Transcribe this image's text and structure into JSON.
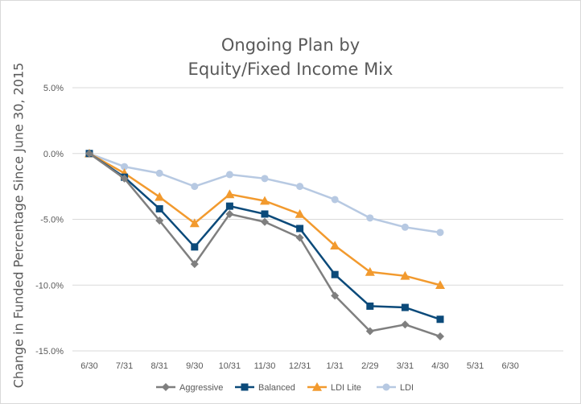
{
  "chart_data": {
    "type": "line",
    "title": [
      "Ongoing Plan by",
      "Equity/Fixed Income Mix"
    ],
    "xlabel": "",
    "ylabel": "Change in Funded Percentage Since June 30, 2015",
    "categories": [
      "6/30",
      "7/31",
      "8/31",
      "9/30",
      "10/31",
      "11/30",
      "12/31",
      "1/31",
      "2/29",
      "3/31",
      "4/30",
      "5/31",
      "6/30"
    ],
    "ylim": [
      -15.0,
      5.0
    ],
    "yticks": [
      5.0,
      0.0,
      -5.0,
      -10.0,
      -15.0
    ],
    "ytick_labels": [
      "5.0%",
      "0.0%",
      "-5.0%",
      "-10.0%",
      "-15.0%"
    ],
    "grid": "horizontal",
    "legend_position": "bottom",
    "series": [
      {
        "name": "Aggressive",
        "color": "#7f7f7f",
        "marker": "diamond",
        "values": [
          0.0,
          -1.9,
          -5.1,
          -8.4,
          -4.6,
          -5.2,
          -6.4,
          -10.8,
          -13.5,
          -13.0,
          -13.9,
          null,
          null
        ]
      },
      {
        "name": "Balanced",
        "color": "#0b4a7a",
        "marker": "square",
        "values": [
          0.0,
          -1.8,
          -4.2,
          -7.1,
          -4.0,
          -4.6,
          -5.7,
          -9.2,
          -11.6,
          -11.7,
          -12.6,
          null,
          null
        ]
      },
      {
        "name": "LDI Lite",
        "color": "#f29a2e",
        "marker": "triangle",
        "values": [
          0.0,
          -1.5,
          -3.3,
          -5.3,
          -3.1,
          -3.6,
          -4.6,
          -7.0,
          -9.0,
          -9.3,
          -10.0,
          null,
          null
        ]
      },
      {
        "name": "LDI",
        "color": "#b7c9e2",
        "marker": "circle",
        "values": [
          0.0,
          -1.0,
          -1.5,
          -2.5,
          -1.6,
          -1.9,
          -2.5,
          -3.5,
          -4.9,
          -5.6,
          -6.0,
          null,
          null
        ]
      }
    ]
  }
}
